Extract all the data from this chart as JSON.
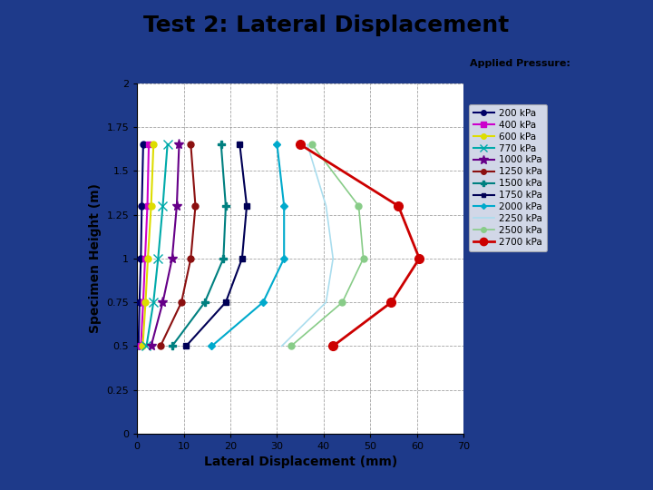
{
  "title": "Test 2: Lateral Displacement",
  "xlabel": "Lateral Displacement (mm)",
  "ylabel": "Specimen Height (m)",
  "xlim": [
    0,
    70
  ],
  "ylim": [
    0,
    2
  ],
  "xticks": [
    0,
    10,
    20,
    30,
    40,
    50,
    60,
    70
  ],
  "yticks": [
    0,
    0.25,
    0.5,
    0.75,
    1,
    1.25,
    1.5,
    1.75,
    2
  ],
  "bg_color": "#1e3a8a",
  "plot_bg": "#ffffff",
  "title_bg": "#ffff99",
  "legend_title": "Applied Pressure:",
  "heights": [
    0.5,
    0.75,
    1.0,
    1.3,
    1.65
  ],
  "series": [
    {
      "label": "200 kPa",
      "color": "#000066",
      "marker": "o",
      "ms": 5,
      "lw": 1.5,
      "ls": "-",
      "x": [
        0.3,
        0.5,
        0.8,
        1.0,
        1.3
      ]
    },
    {
      "label": "400 kPa",
      "color": "#cc00cc",
      "marker": "s",
      "ms": 5,
      "lw": 1.5,
      "ls": "-",
      "x": [
        0.8,
        1.3,
        1.7,
        2.2,
        2.5
      ]
    },
    {
      "label": "600 kPa",
      "color": "#dddd00",
      "marker": "o",
      "ms": 5,
      "lw": 1.5,
      "ls": "-",
      "x": [
        1.2,
        1.8,
        2.3,
        3.0,
        3.5
      ]
    },
    {
      "label": "770 kPa",
      "color": "#00aaaa",
      "marker": "x",
      "ms": 7,
      "lw": 1.5,
      "ls": "-",
      "x": [
        2.0,
        3.5,
        4.5,
        5.5,
        6.5
      ]
    },
    {
      "label": "1000 kPa",
      "color": "#660088",
      "marker": "*",
      "ms": 8,
      "lw": 1.5,
      "ls": "-",
      "x": [
        3.0,
        5.5,
        7.5,
        8.5,
        9.0
      ]
    },
    {
      "label": "1250 kPa",
      "color": "#8b1010",
      "marker": "o",
      "ms": 5,
      "lw": 1.5,
      "ls": "-",
      "x": [
        5.0,
        9.5,
        11.5,
        12.5,
        11.5
      ]
    },
    {
      "label": "1500 kPa",
      "color": "#008080",
      "marker": "P",
      "ms": 6,
      "lw": 1.5,
      "ls": "-",
      "x": [
        7.5,
        14.5,
        18.5,
        19.0,
        18.0
      ]
    },
    {
      "label": "1750 kPa",
      "color": "#000055",
      "marker": "s",
      "ms": 4,
      "lw": 1.5,
      "ls": "-",
      "x": [
        10.5,
        19.0,
        22.5,
        23.5,
        22.0
      ]
    },
    {
      "label": "2000 kPa",
      "color": "#00aacc",
      "marker": "D",
      "ms": 4,
      "lw": 1.5,
      "ls": "-",
      "x": [
        16.0,
        27.0,
        31.5,
        31.5,
        30.0
      ]
    },
    {
      "label": "2250 kPa",
      "color": "#aaddee",
      "marker": "None",
      "ms": 4,
      "lw": 1.2,
      "ls": "-",
      "x": [
        31.0,
        40.5,
        42.0,
        40.5,
        36.5
      ]
    },
    {
      "label": "2500 kPa",
      "color": "#88cc88",
      "marker": "o",
      "ms": 5,
      "lw": 1.2,
      "ls": "-",
      "x": [
        33.0,
        44.0,
        48.5,
        47.5,
        37.5
      ]
    },
    {
      "label": "2700 kPa",
      "color": "#cc0000",
      "marker": "o",
      "ms": 7,
      "lw": 2.0,
      "ls": "-",
      "x": [
        42.0,
        54.5,
        60.5,
        56.0,
        35.0
      ]
    }
  ]
}
